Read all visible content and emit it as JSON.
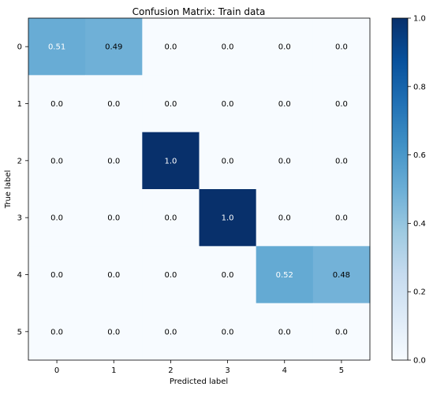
{
  "chart_data": {
    "type": "heatmap",
    "title": "Confusion Matrix: Train data",
    "xlabel": "Predicted label",
    "ylabel": "True label",
    "x_categories": [
      "0",
      "1",
      "2",
      "3",
      "4",
      "5"
    ],
    "y_categories": [
      "0",
      "1",
      "2",
      "3",
      "4",
      "5"
    ],
    "values": [
      [
        0.51,
        0.49,
        0.0,
        0.0,
        0.0,
        0.0
      ],
      [
        0.0,
        0.0,
        0.0,
        0.0,
        0.0,
        0.0
      ],
      [
        0.0,
        0.0,
        1.0,
        0.0,
        0.0,
        0.0
      ],
      [
        0.0,
        0.0,
        0.0,
        1.0,
        0.0,
        0.0
      ],
      [
        0.0,
        0.0,
        0.0,
        0.0,
        0.52,
        0.48
      ],
      [
        0.0,
        0.0,
        0.0,
        0.0,
        0.0,
        0.0
      ]
    ],
    "cell_labels": [
      [
        "0.51",
        "0.49",
        "0.0",
        "0.0",
        "0.0",
        "0.0"
      ],
      [
        "0.0",
        "0.0",
        "0.0",
        "0.0",
        "0.0",
        "0.0"
      ],
      [
        "0.0",
        "0.0",
        "1.0",
        "0.0",
        "0.0",
        "0.0"
      ],
      [
        "0.0",
        "0.0",
        "0.0",
        "1.0",
        "0.0",
        "0.0"
      ],
      [
        "0.0",
        "0.0",
        "0.0",
        "0.0",
        "0.52",
        "0.48"
      ],
      [
        "0.0",
        "0.0",
        "0.0",
        "0.0",
        "0.0",
        "0.0"
      ]
    ],
    "colorbar": {
      "range": [
        0.0,
        1.0
      ],
      "ticks": [
        "0.0",
        "0.2",
        "0.4",
        "0.6",
        "0.8",
        "1.0"
      ],
      "colormap": "Blues"
    },
    "colors": {
      "low": "#f7fbff",
      "high": "#08306b",
      "label_dark": "#000000",
      "label_light": "#ffffff"
    },
    "grid": false,
    "legend": "colorbar-right"
  }
}
